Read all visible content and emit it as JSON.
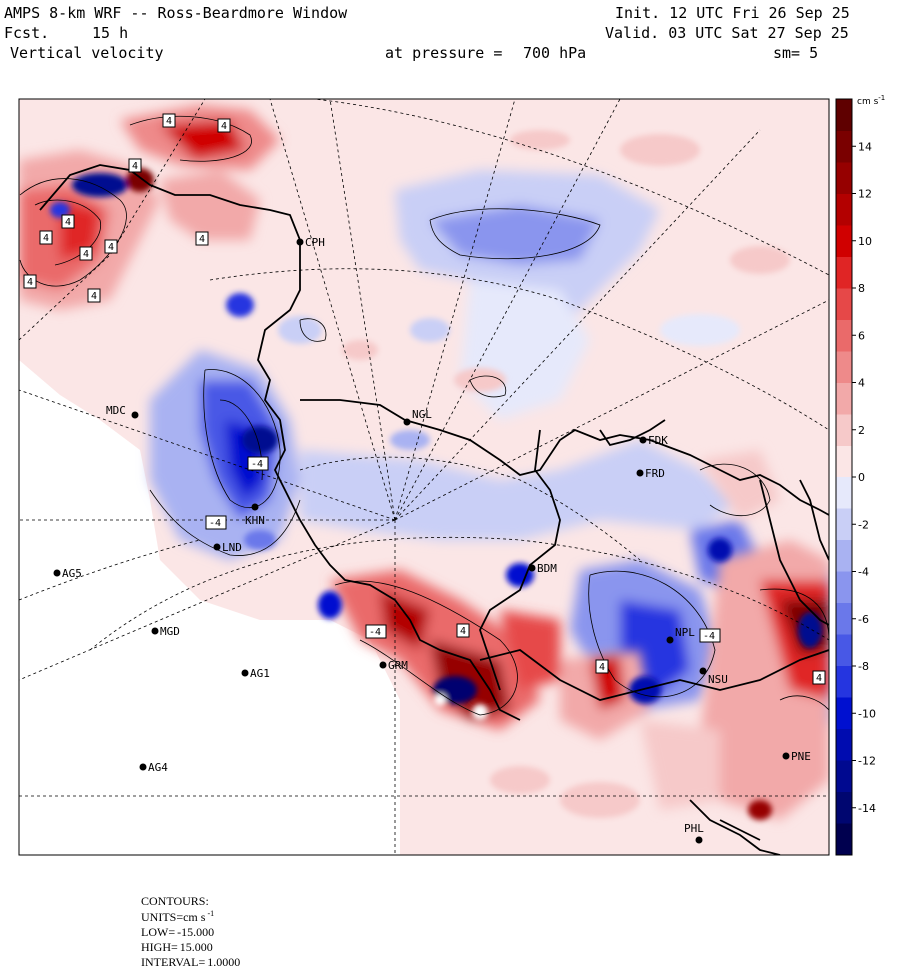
{
  "header": {
    "title": "AMPS 8-km WRF -- Ross-Beardmore Window",
    "fcst_label": "Fcst.",
    "fcst_value": "15 h",
    "field_name": "Vertical velocity",
    "pressure_label": "at pressure =",
    "pressure_value": "700 hPa",
    "init": "Init. 12 UTC Fri 26 Sep 25",
    "valid": "Valid. 03 UTC Sat 27 Sep 25",
    "smoothing": "sm= 5"
  },
  "colorbar": {
    "units_label": "cm s",
    "units_exp": "-1",
    "ticks": [
      "14",
      "12",
      "10",
      "8",
      "6",
      "4",
      "2",
      "0",
      "-2",
      "-4",
      "-6",
      "-8",
      "-10",
      "-12",
      "-14"
    ],
    "tick_values": [
      14,
      12,
      10,
      8,
      6,
      4,
      2,
      0,
      -2,
      -4,
      -6,
      -8,
      -10,
      -12,
      -14
    ],
    "range": [
      -16,
      16
    ],
    "colors_positive": [
      "#fbe6e6",
      "#f6c9c9",
      "#f2a9a9",
      "#ee8a8a",
      "#ea6a6a",
      "#e64848",
      "#e02525",
      "#d00000",
      "#b30000",
      "#960000",
      "#7a0000",
      "#5f0000"
    ],
    "colors_negative": [
      "#e6e9fb",
      "#c9cff6",
      "#a9b2f2",
      "#8a95ee",
      "#6a78ea",
      "#4858e6",
      "#2535e0",
      "#0010d0",
      "#000cb0",
      "#000990",
      "#000670",
      "#00004f"
    ]
  },
  "stations": [
    {
      "code": "CPH"
    },
    {
      "code": "MDC"
    },
    {
      "code": "NGL"
    },
    {
      "code": "FDK"
    },
    {
      "code": "FRD"
    },
    {
      "code": "KHN"
    },
    {
      "code": "LND"
    },
    {
      "code": "AG5"
    },
    {
      "code": "MGD"
    },
    {
      "code": "AG1"
    },
    {
      "code": "AG4"
    },
    {
      "code": "GRM"
    },
    {
      "code": "BDM"
    },
    {
      "code": "NPL"
    },
    {
      "code": "NSU"
    },
    {
      "code": "PNE"
    },
    {
      "code": "PHL"
    }
  ],
  "contour_labels": [
    "4",
    "4",
    "4",
    "4",
    "4",
    "4",
    "4",
    "4",
    "4",
    "4",
    "-4",
    "-4",
    "4",
    "4",
    "4",
    "-4",
    "-4"
  ],
  "footer": {
    "contours_label": "CONTOURS:",
    "units_label": "UNITS=cm s",
    "units_exp": "-1",
    "low_label": "LOW=",
    "low_value": "-15.000",
    "high_label": "HIGH=",
    "high_value": "15.000",
    "interval_label": "INTERVAL=",
    "interval_value": "1.0000"
  }
}
